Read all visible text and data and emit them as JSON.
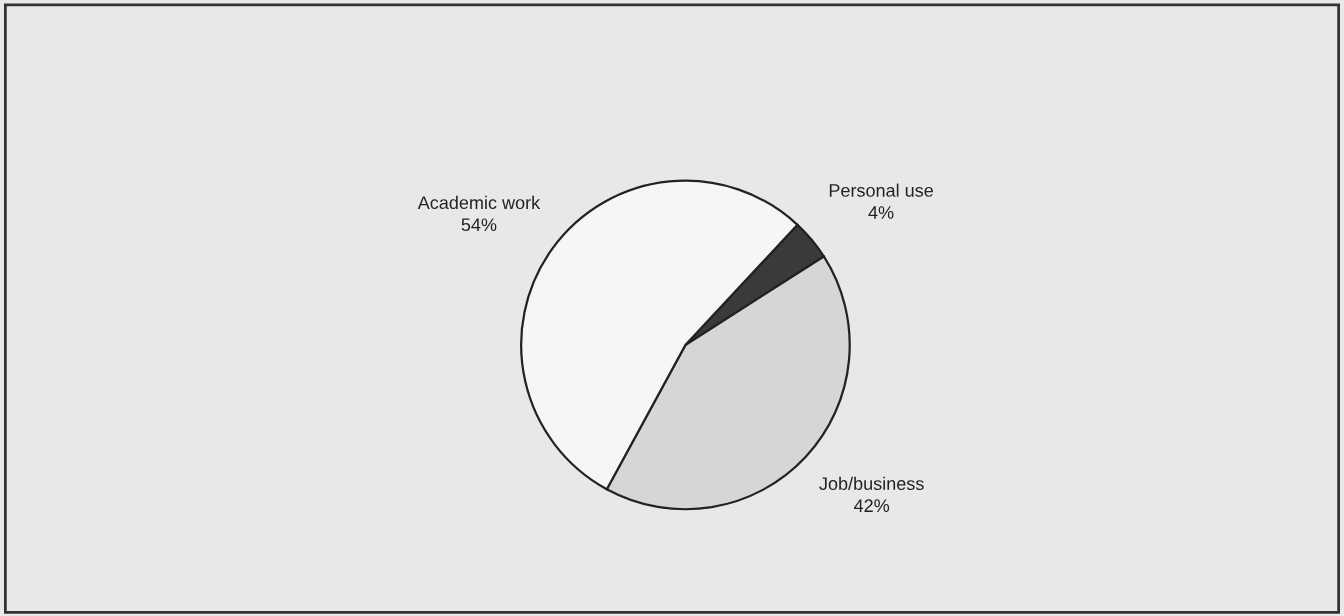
{
  "chart_data": {
    "type": "pie",
    "categories": [
      "Personal use",
      "Job/business",
      "Academic work"
    ],
    "values": [
      4,
      42,
      54
    ],
    "value_labels": [
      "4%",
      "42%",
      "54%"
    ],
    "colors": [
      "#3a3a3a",
      "#d6d6d6",
      "#f6f6f4"
    ]
  }
}
